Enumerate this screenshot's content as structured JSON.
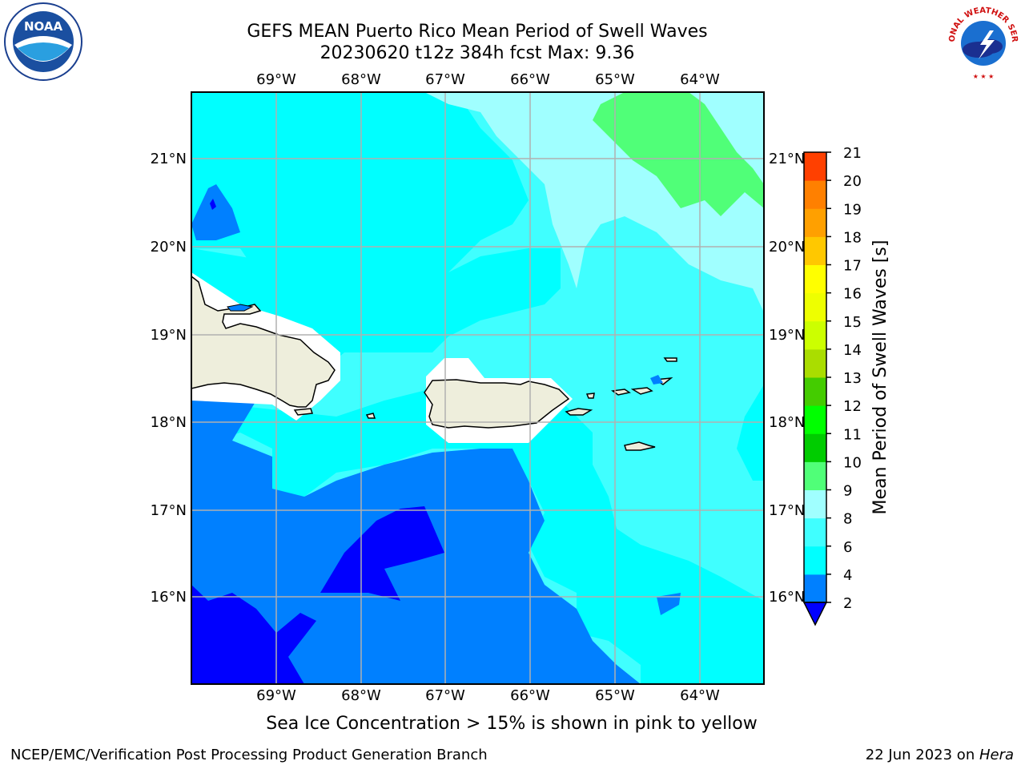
{
  "title": {
    "line1": "GEFS MEAN Puerto Rico Mean Period of Swell Waves",
    "line2": "20230620 t12z 384h fcst   Max: 9.36"
  },
  "map": {
    "lon_labels_top": [
      "69°W",
      "68°W",
      "67°W",
      "66°W",
      "65°W",
      "64°W"
    ],
    "lon_labels_bottom": [
      "69°W",
      "68°W",
      "67°W",
      "66°W",
      "65°W",
      "64°W"
    ],
    "lat_labels_left": [
      "21°N",
      "20°N",
      "19°N",
      "18°N",
      "17°N",
      "16°N"
    ],
    "lat_labels_right": [
      "21°N",
      "20°N",
      "19°N",
      "18°N",
      "17°N",
      "16°N"
    ],
    "land_color": "#eeeedc",
    "grid_color": "#b0b0b0"
  },
  "colorbar": {
    "label": "Mean Period of Swell Waves [s]",
    "ticks": [
      "2",
      "4",
      "6",
      "8",
      "9",
      "10",
      "11",
      "12",
      "13",
      "14",
      "15",
      "16",
      "17",
      "18",
      "19",
      "20",
      "21"
    ],
    "colors": [
      "#0000ff",
      "#0080ff",
      "#00ffff",
      "#40ffff",
      "#a0ffff",
      "#50ff78",
      "#00cc00",
      "#00ff00",
      "#44cc00",
      "#aadd00",
      "#ccff00",
      "#eeff00",
      "#ffff00",
      "#ffc800",
      "#ffa000",
      "#ff8000",
      "#ff4000",
      "#ff0000"
    ]
  },
  "logos": {
    "noaa": "NOAA",
    "nws_text": "NATIONAL WEATHER SERVICE"
  },
  "note": "Sea Ice Concentration > 15% is shown in pink to yellow",
  "footer": {
    "left": "NCEP/EMC/Verification Post Processing Product Generation Branch",
    "right_date": "22 Jun 2023 on ",
    "right_host": "Hera"
  }
}
